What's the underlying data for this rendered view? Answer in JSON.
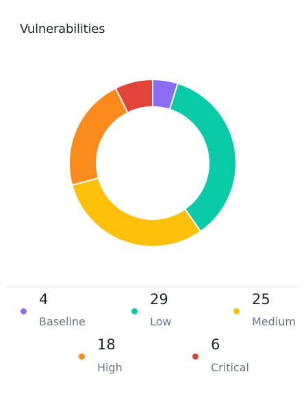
{
  "card": {
    "title": "Vulnerabilities"
  },
  "chart_data": {
    "type": "pie",
    "donut": true,
    "categories": [
      "Baseline",
      "Low",
      "Medium",
      "High",
      "Critical"
    ],
    "values": [
      4,
      29,
      25,
      18,
      6
    ],
    "colors": [
      "#8b6cf2",
      "#0acba8",
      "#fec009",
      "#fa8b1b",
      "#e04538"
    ],
    "legend_position": "bottom"
  },
  "legend": {
    "items": [
      {
        "value": "4",
        "label": "Baseline",
        "color": "#8b6cf2"
      },
      {
        "value": "29",
        "label": "Low",
        "color": "#0acba8"
      },
      {
        "value": "25",
        "label": "Medium",
        "color": "#fec009"
      },
      {
        "value": "18",
        "label": "High",
        "color": "#fa8b1b"
      },
      {
        "value": "6",
        "label": "Critical",
        "color": "#e04538"
      }
    ]
  }
}
